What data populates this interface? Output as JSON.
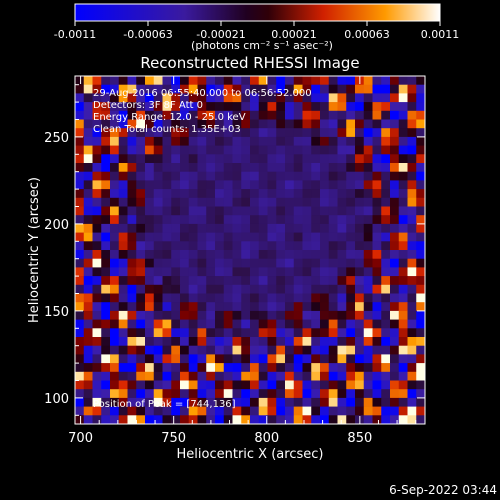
{
  "colorbar": {
    "ticks": [
      "-0.0011",
      "-0.00063",
      "-0.00021",
      "0.00021",
      "0.00063",
      "0.0011"
    ],
    "range": [
      -0.0011,
      0.0011
    ],
    "unit_label": "(photons cm⁻² s⁻¹ asec⁻²)",
    "colormap": "blue-black-red-yellow-white"
  },
  "chart_data": {
    "type": "heatmap",
    "title": "Reconstructed RHESSI Image",
    "xlabel": "Heliocentric X (arcsec)",
    "ylabel": "Heliocentric Y (arcsec)",
    "xlim": [
      697,
      885
    ],
    "ylim": [
      85,
      285
    ],
    "x_ticks": [
      700,
      750,
      800,
      850
    ],
    "y_ticks": [
      100,
      150,
      200,
      250
    ],
    "info_lines": [
      "29-Aug-2016 06:55:40.000 to 06:56:52.000",
      "Detectors: 3F 8F  Att 0",
      "Energy Range: 12.0 - 25.0 keV",
      "Clean    Total counts: 1.35E+03"
    ],
    "peak_annotation": "Position of Peak = [744,136]"
  },
  "footer": {
    "timestamp": "6-Sep-2022 03:44"
  }
}
